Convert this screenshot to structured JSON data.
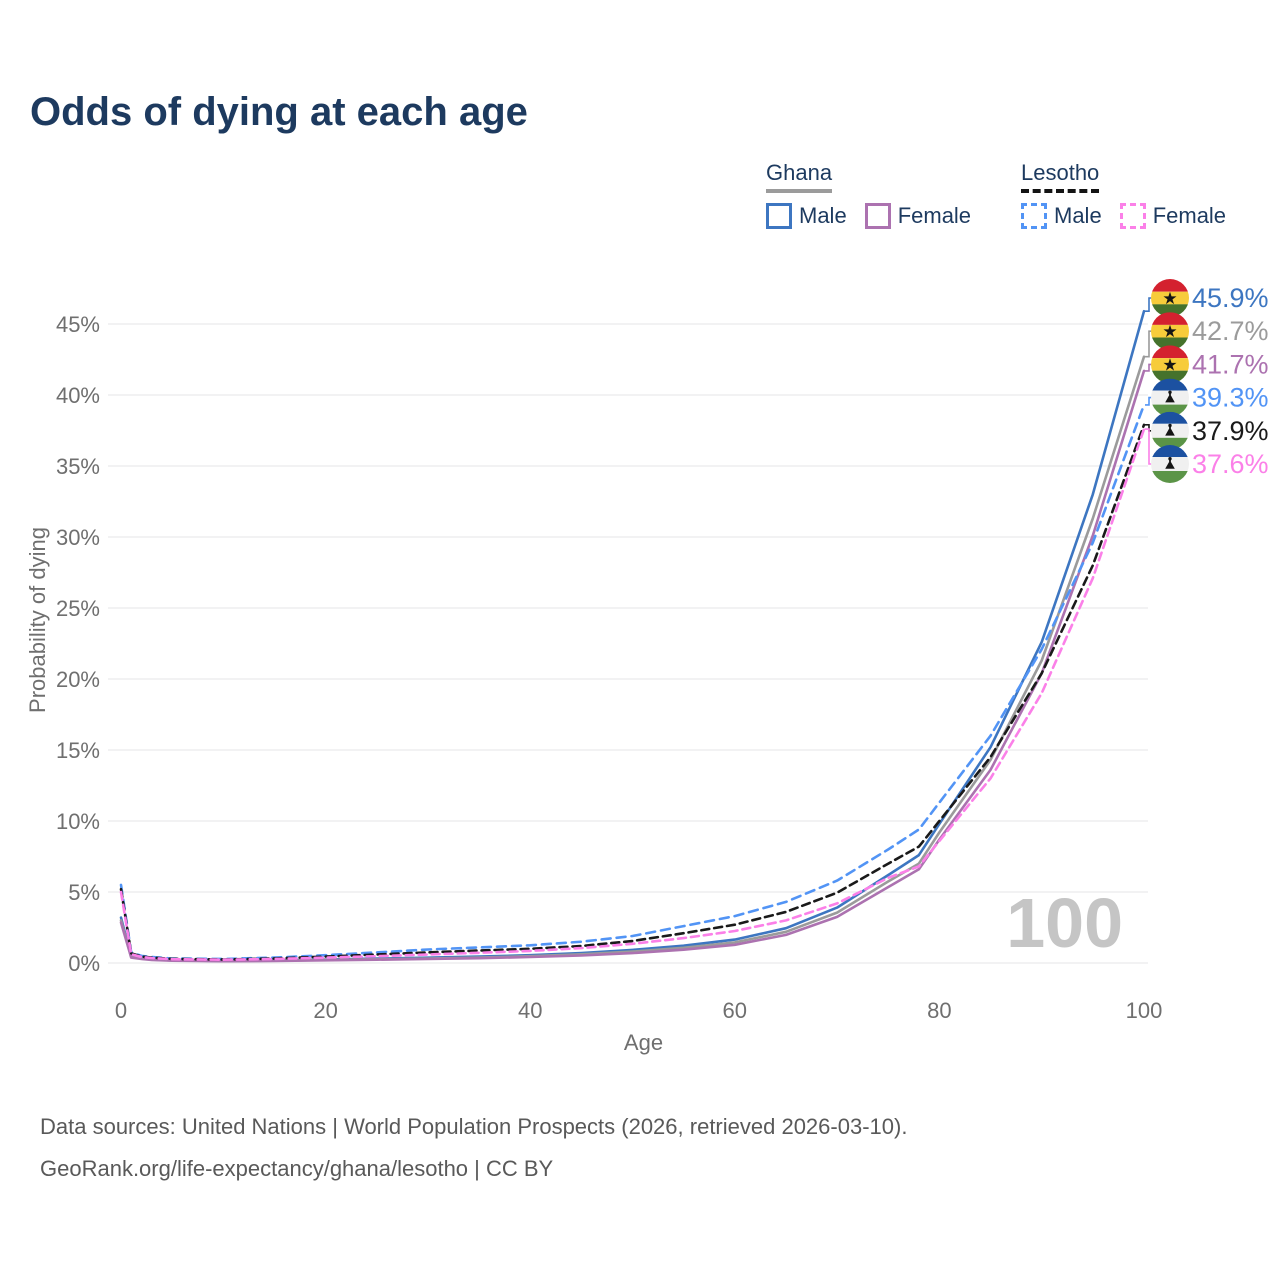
{
  "page": {
    "title": "Odds of dying at each age",
    "background": "#ffffff"
  },
  "legend": {
    "groups": [
      {
        "name": "Ghana",
        "line_style": "solid",
        "underline_color": "#9b9b9b",
        "items": [
          {
            "label": "Male",
            "box_color": "#3d76c1",
            "dashed": false
          },
          {
            "label": "Female",
            "box_color": "#ac72b0",
            "dashed": false
          }
        ]
      },
      {
        "name": "Lesotho",
        "line_style": "dashed",
        "underline_color": "#141414",
        "items": [
          {
            "label": "Male",
            "box_color": "#5294f5",
            "dashed": true
          },
          {
            "label": "Female",
            "box_color": "#fb80e8",
            "dashed": true
          }
        ]
      }
    ]
  },
  "chart_data": {
    "type": "line",
    "title": "Odds of dying at each age",
    "xlabel": "Age",
    "ylabel": "Probability of dying",
    "xlim": [
      0,
      100
    ],
    "ylim": [
      0,
      47
    ],
    "x_ticks": [
      0,
      20,
      40,
      60,
      80,
      100
    ],
    "y_ticks_percent": [
      0,
      5,
      10,
      15,
      20,
      25,
      30,
      35,
      40,
      45
    ],
    "grid": true,
    "legend_position": "top-right",
    "watermark": "100",
    "x": [
      0,
      1,
      2,
      3,
      5,
      10,
      15,
      20,
      25,
      30,
      35,
      40,
      45,
      50,
      55,
      60,
      65,
      70,
      75,
      78,
      80,
      85,
      90,
      95,
      100
    ],
    "series": [
      {
        "name": "Ghana — Male",
        "country": "ghana",
        "sex": "male",
        "color": "#3d76c1",
        "dash": null,
        "end_label": "45.9%",
        "values": [
          3.2,
          0.45,
          0.32,
          0.26,
          0.19,
          0.15,
          0.18,
          0.25,
          0.31,
          0.37,
          0.45,
          0.55,
          0.7,
          0.92,
          1.22,
          1.65,
          2.45,
          3.9,
          6.2,
          7.6,
          9.8,
          15.2,
          22.6,
          33.0,
          45.9
        ]
      },
      {
        "name": "Ghana — Both sexes",
        "country": "ghana",
        "sex": "both",
        "color": "#9b9b9b",
        "dash": null,
        "end_label": "42.7%",
        "values": [
          3.0,
          0.42,
          0.3,
          0.24,
          0.18,
          0.14,
          0.16,
          0.22,
          0.27,
          0.32,
          0.39,
          0.48,
          0.61,
          0.8,
          1.07,
          1.45,
          2.2,
          3.55,
          5.75,
          7.0,
          9.2,
          14.3,
          21.3,
          31.3,
          42.7
        ]
      },
      {
        "name": "Ghana — Female",
        "country": "ghana",
        "sex": "female",
        "color": "#ac72b0",
        "dash": null,
        "end_label": "41.7%",
        "values": [
          2.85,
          0.38,
          0.28,
          0.22,
          0.16,
          0.13,
          0.14,
          0.19,
          0.23,
          0.28,
          0.34,
          0.42,
          0.53,
          0.7,
          0.94,
          1.28,
          1.98,
          3.25,
          5.35,
          6.6,
          8.7,
          13.6,
          20.4,
          30.1,
          41.7
        ]
      },
      {
        "name": "Lesotho — Male",
        "country": "lesotho",
        "sex": "male",
        "color": "#5294f5",
        "dash": "9 6",
        "end_label": "39.3%",
        "values": [
          5.5,
          0.75,
          0.5,
          0.42,
          0.32,
          0.28,
          0.38,
          0.55,
          0.75,
          0.95,
          1.1,
          1.25,
          1.5,
          1.9,
          2.6,
          3.3,
          4.3,
          5.8,
          8.0,
          9.4,
          11.3,
          16.0,
          22.1,
          29.6,
          39.3
        ]
      },
      {
        "name": "Lesotho — Both sexes",
        "country": "lesotho",
        "sex": "both",
        "color": "#1a1a1a",
        "dash": "8 5",
        "end_label": "37.9%",
        "values": [
          5.2,
          0.68,
          0.45,
          0.38,
          0.29,
          0.25,
          0.32,
          0.45,
          0.6,
          0.75,
          0.88,
          1.0,
          1.2,
          1.55,
          2.1,
          2.7,
          3.6,
          4.95,
          7.0,
          8.2,
          10.0,
          14.5,
          20.4,
          28.0,
          37.9
        ]
      },
      {
        "name": "Lesotho — Female",
        "country": "lesotho",
        "sex": "female",
        "color": "#fb80e8",
        "dash": "8 5",
        "end_label": "37.6%",
        "values": [
          5.0,
          0.62,
          0.42,
          0.35,
          0.27,
          0.23,
          0.28,
          0.38,
          0.48,
          0.6,
          0.72,
          0.85,
          1.05,
          1.35,
          1.75,
          2.25,
          3.0,
          4.2,
          6.0,
          6.8,
          8.6,
          13.0,
          19.0,
          27.1,
          37.6
        ]
      }
    ],
    "flag_colors": {
      "ghana": [
        "#d4212f",
        "#f7cc3b",
        "#45722c"
      ],
      "lesotho": [
        "#1c51a1",
        "#f0f0f0",
        "#5b9447"
      ]
    },
    "colors": {
      "grid": "#e9e9ec",
      "axis_text": "#6f6f6f",
      "watermark": "#c5c5c5"
    }
  },
  "footer": {
    "line1": "Data sources: United Nations | World Population Prospects (2026, retrieved 2026-03-10).",
    "line2": "GeoRank.org/life-expectancy/ghana/lesotho | CC BY"
  }
}
